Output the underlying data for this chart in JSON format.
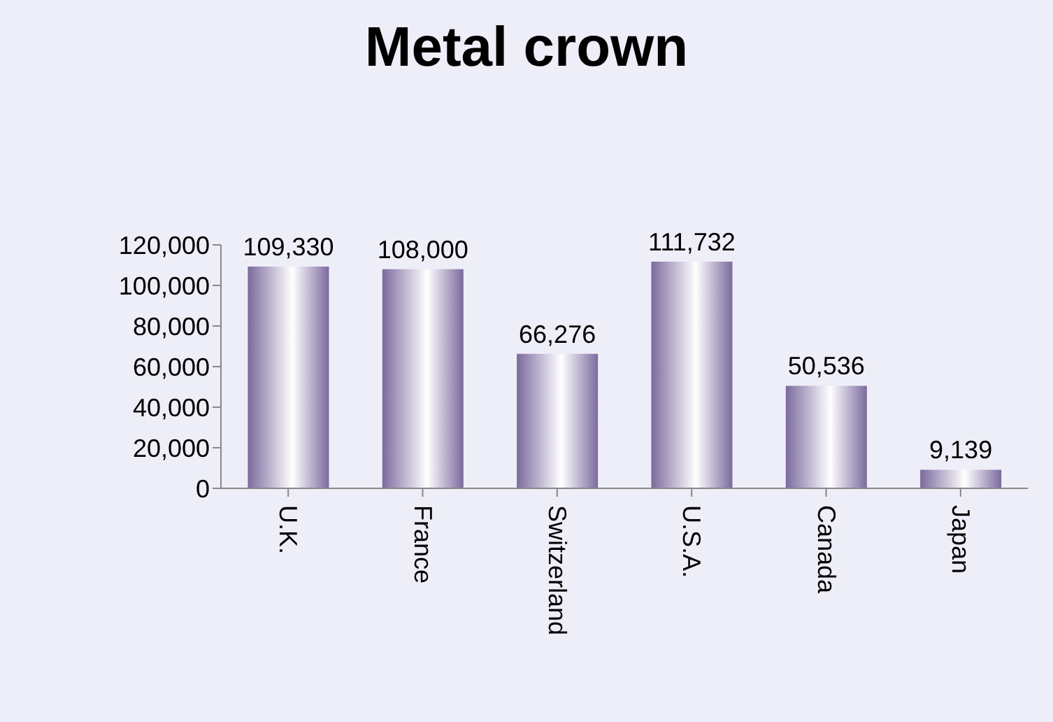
{
  "chart_data": {
    "type": "bar",
    "title": "Metal crown",
    "categories": [
      "U.K.",
      "France",
      "Switzerland",
      "U.S.A.",
      "Canada",
      "Japan"
    ],
    "values": [
      109330,
      108000,
      66276,
      111732,
      50536,
      9139
    ],
    "value_labels": [
      "109,330",
      "108,000",
      "66,276",
      "111,732",
      "50,536",
      "9,139"
    ],
    "color": "#7b6a9e",
    "ylim": [
      0,
      120000
    ],
    "yticks": [
      0,
      {
        "value": 20000,
        "label": "20,000"
      },
      {
        "value": 40000,
        "label": "40,000"
      },
      {
        "value": 60000,
        "label": "60,000"
      },
      {
        "value": 80000,
        "label": "80,000"
      },
      {
        "value": 100000,
        "label": "100,000"
      },
      {
        "value": 120000,
        "label": "120,000"
      }
    ],
    "grid": false
  }
}
